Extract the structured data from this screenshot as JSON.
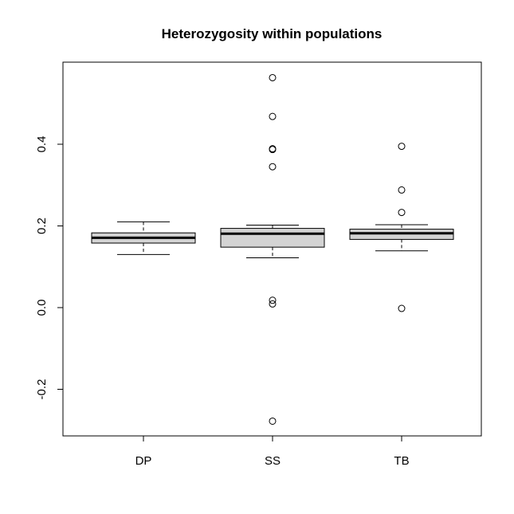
{
  "chart_data": {
    "type": "boxplot",
    "title": "Heterozygosity within populations",
    "xlabel": "",
    "ylabel": "",
    "categories": [
      "DP",
      "SS",
      "TB"
    ],
    "ylim": [
      -0.31,
      0.6
    ],
    "yticks": [
      -0.2,
      0.0,
      0.2,
      0.4
    ],
    "ytick_labels": [
      "-0.2",
      "0.0",
      "0.2",
      "0.4"
    ],
    "box_fill": "#d3d3d3",
    "boxes": [
      {
        "category": "DP",
        "whisker_low": 0.13,
        "q1": 0.158,
        "median": 0.171,
        "q3": 0.183,
        "whisker_high": 0.21,
        "outliers": []
      },
      {
        "category": "SS",
        "whisker_low": 0.122,
        "q1": 0.148,
        "median": 0.181,
        "q3": 0.194,
        "whisker_high": 0.202,
        "outliers": [
          0.563,
          0.468,
          0.389,
          0.387,
          0.345,
          0.018,
          0.009,
          -0.278
        ]
      },
      {
        "category": "TB",
        "whisker_low": 0.139,
        "q1": 0.167,
        "median": 0.182,
        "q3": 0.192,
        "whisker_high": 0.203,
        "outliers": [
          0.395,
          0.288,
          0.233,
          -0.002
        ]
      }
    ]
  }
}
